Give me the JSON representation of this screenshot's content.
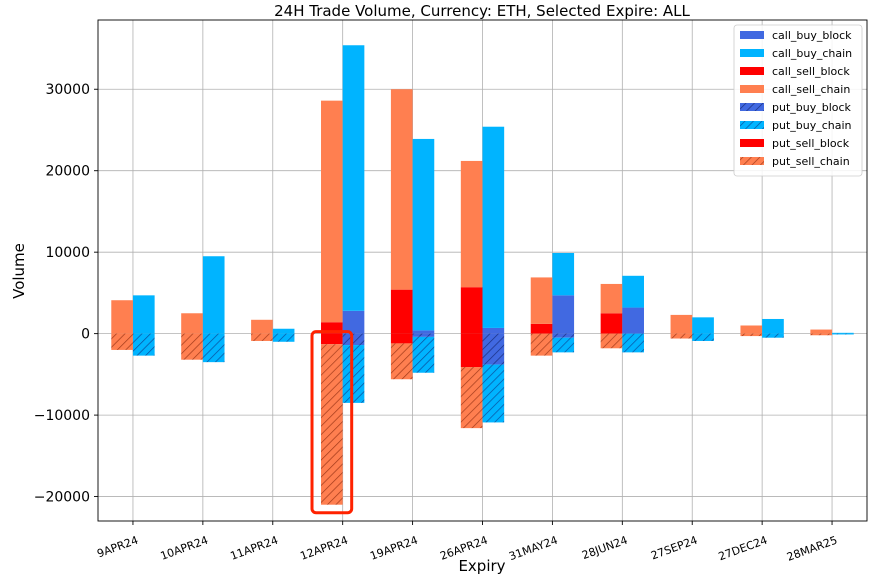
{
  "colors": {
    "call_buy_block": "#4169e1",
    "call_buy_chain": "#00b4ff",
    "call_sell_block": "#ff0000",
    "call_sell_chain": "#ff7f50",
    "put_buy_block": "#4169e1",
    "put_buy_chain": "#00b4ff",
    "put_sell_block": "#ff0000",
    "put_sell_chain": "#ff7f50",
    "highlight": "#ff2200",
    "grid": "#b0b0b0"
  },
  "chart_data": {
    "type": "bar",
    "title": "24H Trade Volume, Currency: ETH, Selected Expire: ALL",
    "xlabel": "Expiry",
    "ylabel": "Volume",
    "ylim": [
      -23000,
      38500
    ],
    "yticks": [
      {
        "value": -20000,
        "label": "−20000"
      },
      {
        "value": -10000,
        "label": "−10000"
      },
      {
        "value": 0,
        "label": "0"
      },
      {
        "value": 10000,
        "label": "10000"
      },
      {
        "value": 20000,
        "label": "20000"
      },
      {
        "value": 30000,
        "label": "30000"
      }
    ],
    "categories": [
      "9APR24",
      "10APR24",
      "11APR24",
      "12APR24",
      "19APR24",
      "26APR24",
      "31MAY24",
      "28JUN24",
      "27SEP24",
      "27DEC24",
      "28MAR25"
    ],
    "series": [
      {
        "name": "call_buy_block",
        "stack": "buy",
        "side": "call",
        "hatch": false,
        "values": [
          0,
          0,
          0,
          2800,
          400,
          700,
          4700,
          3200,
          0,
          0,
          0
        ]
      },
      {
        "name": "call_buy_chain",
        "stack": "buy",
        "side": "call",
        "hatch": false,
        "values": [
          4700,
          9500,
          600,
          32600,
          23500,
          24700,
          5200,
          3900,
          2000,
          1800,
          100
        ]
      },
      {
        "name": "call_sell_block",
        "stack": "sell",
        "side": "call",
        "hatch": false,
        "values": [
          0,
          0,
          0,
          1400,
          5400,
          5700,
          1200,
          2500,
          0,
          0,
          0
        ]
      },
      {
        "name": "call_sell_chain",
        "stack": "sell",
        "side": "call",
        "hatch": false,
        "values": [
          4100,
          2500,
          1700,
          27200,
          24600,
          15500,
          5700,
          3600,
          2300,
          1000,
          500
        ]
      },
      {
        "name": "put_buy_block",
        "stack": "buy",
        "side": "put",
        "hatch": true,
        "values": [
          0,
          0,
          0,
          -1400,
          -400,
          -3800,
          -500,
          0,
          0,
          0,
          0
        ]
      },
      {
        "name": "put_buy_chain",
        "stack": "buy",
        "side": "put",
        "hatch": true,
        "values": [
          -2700,
          -3500,
          -1000,
          -7100,
          -4400,
          -7100,
          -1800,
          -2300,
          -900,
          -500,
          -100
        ]
      },
      {
        "name": "put_sell_block",
        "stack": "sell",
        "side": "put",
        "hatch": false,
        "values": [
          0,
          0,
          0,
          -1300,
          -1200,
          -4100,
          0,
          0,
          0,
          0,
          0
        ]
      },
      {
        "name": "put_sell_chain",
        "stack": "sell",
        "side": "put",
        "hatch": true,
        "values": [
          -2000,
          -3200,
          -900,
          -19700,
          -4400,
          -7500,
          -2700,
          -1800,
          -600,
          -300,
          -200
        ]
      }
    ],
    "legend": [
      "call_buy_block",
      "call_buy_chain",
      "call_sell_block",
      "call_sell_chain",
      "put_buy_block",
      "put_buy_chain",
      "put_sell_block",
      "put_sell_chain"
    ],
    "legend_position": "top-right",
    "annotation": {
      "type": "highlight-box",
      "category": "12APR24",
      "stack": "sell",
      "y_range": [
        -21000,
        0
      ]
    },
    "grid": true
  }
}
